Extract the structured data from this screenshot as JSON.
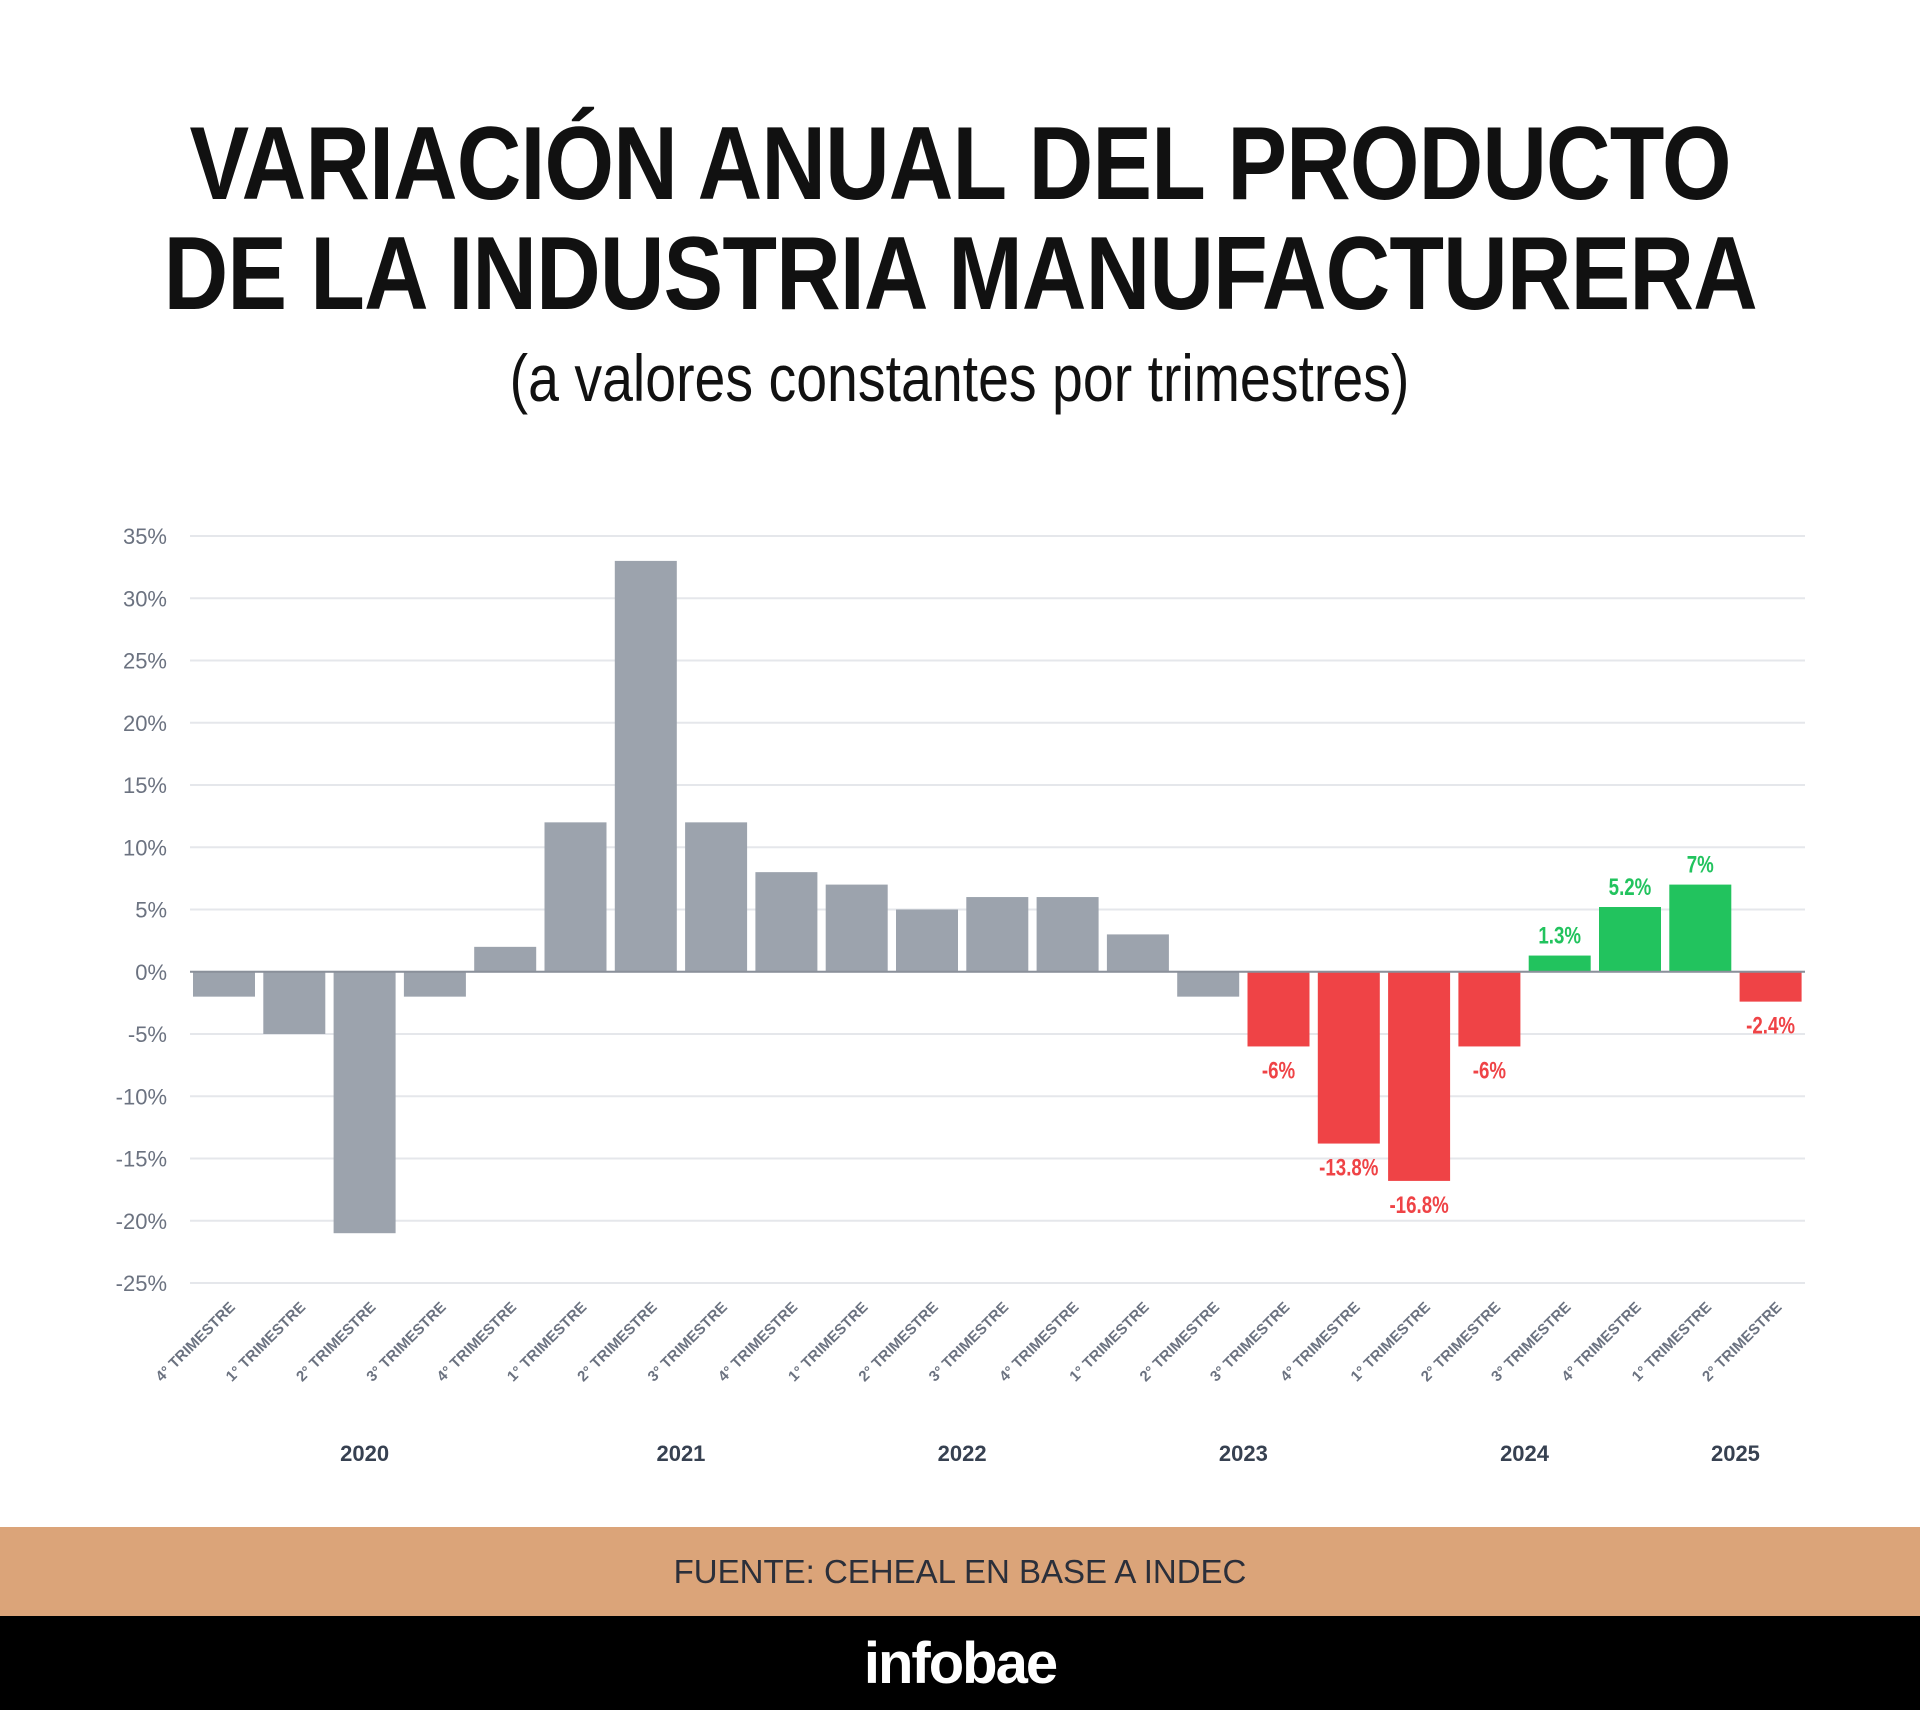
{
  "header": {
    "title_line1": "VARIACIÓN ANUAL DEL PRODUCTO",
    "title_line2": "DE LA INDUSTRIA MANUFACTURERA",
    "subtitle": "(a valores constantes por trimestres)"
  },
  "footer": {
    "source": "FUENTE: CEHEAL EN BASE A INDEC",
    "brand": "infobae"
  },
  "chart_data": {
    "type": "bar",
    "title": "VARIACIÓN ANUAL DEL PRODUCTO DE LA INDUSTRIA MANUFACTURERA",
    "subtitle": "(a valores constantes por trimestres)",
    "xlabel": "",
    "ylabel": "",
    "ylim": [
      -25,
      35
    ],
    "yticks": [
      35,
      30,
      25,
      20,
      15,
      10,
      5,
      0,
      -5,
      -10,
      -15,
      -20,
      -25
    ],
    "ytick_format": "%",
    "grid": true,
    "categories": [
      "4° TRIMESTRE",
      "1° TRIMESTRE",
      "2° TRIMESTRE",
      "3° TRIMESTRE",
      "4° TRIMESTRE",
      "1° TRIMESTRE",
      "2° TRIMESTRE",
      "3° TRIMESTRE",
      "4° TRIMESTRE",
      "1° TRIMESTRE",
      "2° TRIMESTRE",
      "3° TRIMESTRE",
      "4° TRIMESTRE",
      "1° TRIMESTRE",
      "2° TRIMESTRE",
      "3° TRIMESTRE",
      "4° TRIMESTRE",
      "1° TRIMESTRE",
      "2° TRIMESTRE",
      "3° TRIMESTRE",
      "4° TRIMESTRE",
      "1° TRIMESTRE",
      "2° TRIMESTRE"
    ],
    "values": [
      -2,
      -5,
      -21,
      -2,
      2,
      12,
      33,
      12,
      8,
      7,
      5,
      6,
      6,
      3,
      -2,
      -6,
      -13.8,
      -16.8,
      -6,
      1.3,
      5.2,
      7,
      -2.4
    ],
    "data_labels": [
      "",
      "",
      "",
      "",
      "",
      "",
      "",
      "",
      "",
      "",
      "",
      "",
      "",
      "",
      "",
      "-6%",
      "-13.8%",
      "-16.8%",
      "-6%",
      "1.3%",
      "5.2%",
      "7%",
      "-2.4%"
    ],
    "bar_status": [
      "neutral",
      "neutral",
      "neutral",
      "neutral",
      "neutral",
      "neutral",
      "neutral",
      "neutral",
      "neutral",
      "neutral",
      "neutral",
      "neutral",
      "neutral",
      "neutral",
      "neutral",
      "negative",
      "negative",
      "negative",
      "negative",
      "positive",
      "positive",
      "positive",
      "negative"
    ],
    "year_labels": [
      "2020",
      "2021",
      "2022",
      "2023",
      "2024",
      "2025"
    ],
    "colors": {
      "neutral": "#9ca3ad",
      "negative": "#ef4346",
      "positive": "#22c35e",
      "grid": "#e5e7eb",
      "axis_text": "#6b7280",
      "year_text": "#374151"
    }
  }
}
